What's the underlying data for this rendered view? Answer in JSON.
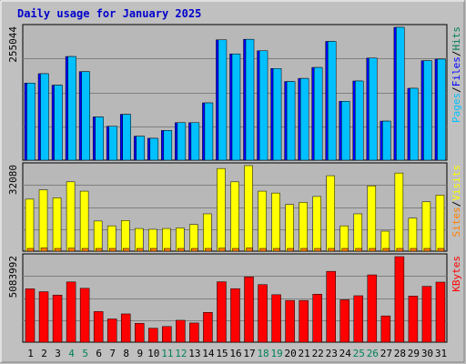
{
  "chart_data": [
    {
      "type": "bar",
      "title": "Daily usage for January 2025",
      "categories": [
        "1",
        "2",
        "3",
        "4",
        "5",
        "6",
        "7",
        "8",
        "9",
        "10",
        "11",
        "12",
        "13",
        "14",
        "15",
        "16",
        "17",
        "18",
        "19",
        "20",
        "21",
        "22",
        "23",
        "24",
        "25",
        "26",
        "27",
        "28",
        "29",
        "30",
        "31"
      ],
      "weekend_days": [
        "4",
        "5",
        "11",
        "12",
        "18",
        "19",
        "25",
        "26"
      ],
      "ylabel_max": "255044",
      "ymax": 255044,
      "ylabel_parts": [
        "Pages",
        "Files",
        "Hits"
      ],
      "series": [
        {
          "name": "Hits",
          "color": "#00805c",
          "values": [
            0,
            0,
            0,
            0,
            0,
            0,
            0,
            0,
            0,
            0,
            0,
            0,
            0,
            0,
            0,
            0,
            0,
            0,
            0,
            0,
            0,
            0,
            0,
            0,
            0,
            0,
            0,
            0,
            0,
            0,
            0
          ]
        },
        {
          "name": "Files",
          "color": "#0000ff",
          "values": [
            148000,
            166000,
            144000,
            199000,
            170000,
            83000,
            65000,
            88000,
            46000,
            42000,
            57000,
            72000,
            72000,
            110000,
            231000,
            204000,
            232000,
            210000,
            176000,
            151000,
            157000,
            178000,
            228000,
            113000,
            152000,
            196000,
            75000,
            255044,
            138000,
            191000,
            194000
          ]
        },
        {
          "name": "Pages",
          "color": "#00c0ff",
          "values": [
            148000,
            166000,
            144000,
            199000,
            170000,
            83000,
            65000,
            88000,
            46000,
            42000,
            57000,
            72000,
            72000,
            110000,
            231000,
            204000,
            232000,
            210000,
            176000,
            151000,
            157000,
            178000,
            228000,
            113000,
            152000,
            196000,
            75000,
            255044,
            138000,
            191000,
            194000
          ]
        }
      ]
    },
    {
      "type": "bar",
      "ylabel_max": "32080",
      "ymax": 32080,
      "ylabel_parts": [
        "Sites",
        "Visits"
      ],
      "series": [
        {
          "name": "Visits",
          "color": "#ffff00",
          "values": [
            19500,
            23000,
            20000,
            26000,
            22500,
            11300,
            9500,
            11500,
            8500,
            8200,
            8500,
            8700,
            10000,
            14000,
            31000,
            26000,
            32080,
            22500,
            21800,
            17500,
            18300,
            20500,
            28300,
            9500,
            14000,
            24500,
            7500,
            29300,
            12400,
            18500,
            21000
          ]
        },
        {
          "name": "Sites",
          "color": "#ff8000",
          "values": [
            900,
            1200,
            900,
            1100,
            1000,
            700,
            600,
            700,
            500,
            500,
            500,
            500,
            600,
            800,
            1100,
            1000,
            1200,
            900,
            900,
            800,
            800,
            900,
            1000,
            600,
            700,
            900,
            600,
            1000,
            700,
            800,
            900
          ]
        }
      ]
    },
    {
      "type": "bar",
      "ylabel_max": "5083992",
      "ymax": 5083992,
      "ylabel_parts": [
        "KBytes"
      ],
      "series": [
        {
          "name": "KBytes",
          "color": "#ff0000",
          "values": [
            3170000,
            3000000,
            2800000,
            3580000,
            3200000,
            1820000,
            1380000,
            1680000,
            1120000,
            830000,
            930000,
            1300000,
            1140000,
            1770000,
            3590000,
            3180000,
            3880000,
            3420000,
            2820000,
            2480000,
            2480000,
            2850000,
            4210000,
            2520000,
            2760000,
            4000000,
            1560000,
            5083992,
            2740000,
            3320000,
            3570000
          ]
        }
      ]
    }
  ]
}
